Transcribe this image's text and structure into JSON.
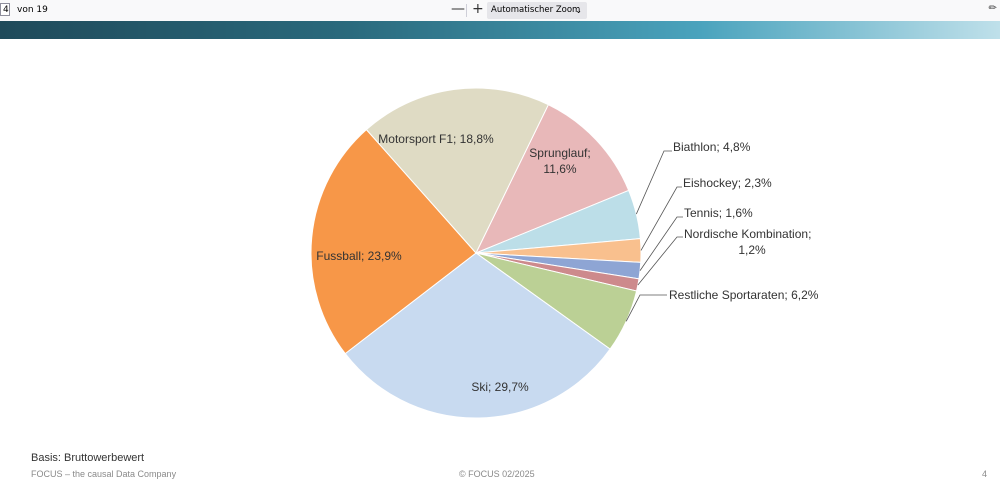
{
  "toolbar": {
    "page_number": "4",
    "page_of": "von 19",
    "zoom_out": "—",
    "zoom_in": "+",
    "zoom_label": "Automatischer Zoom",
    "zoom_chevron": "⌄"
  },
  "colors": {
    "banner_start": "#1f4a5a",
    "banner_end": "#bfe0ea"
  },
  "chart_data": {
    "type": "pie",
    "title": "",
    "slices": [
      {
        "name": "Sprunglauf",
        "value": 11.6,
        "label": "Sprunglauf;",
        "label2": "11,6%",
        "color": "#e8b8b9"
      },
      {
        "name": "Biathlon",
        "value": 4.8,
        "label": "Biathlon; 4,8%",
        "color": "#bcdee8"
      },
      {
        "name": "Eishockey",
        "value": 2.3,
        "label": "Eishockey; 2,3%",
        "color": "#f9c08e"
      },
      {
        "name": "Tennis",
        "value": 1.6,
        "label": "Tennis; 1,6%",
        "color": "#8ea5d4"
      },
      {
        "name": "Nordische Kombination",
        "value": 1.2,
        "label": "Nordische Kombination;",
        "label2": "1,2%",
        "color": "#cd8a8c"
      },
      {
        "name": "Restliche Sportaraten",
        "value": 6.2,
        "label": "Restliche Sportaraten; 6,2%",
        "color": "#bbd095"
      },
      {
        "name": "Ski",
        "value": 29.7,
        "label": "Ski; 29,7%",
        "color": "#c8daf0"
      },
      {
        "name": "Fussball",
        "value": 23.9,
        "label": "Fussball; 23,9%",
        "color": "#f79748"
      },
      {
        "name": "Motorsport F1",
        "value": 18.8,
        "label": "Motorsport F1; 18,8%",
        "color": "#dfdbc4"
      }
    ]
  },
  "footer": {
    "basis": "Basis: Bruttowerbewert",
    "company": "FOCUS – the causal Data Company",
    "copyright": "© FOCUS 02/2025",
    "page": "4"
  }
}
